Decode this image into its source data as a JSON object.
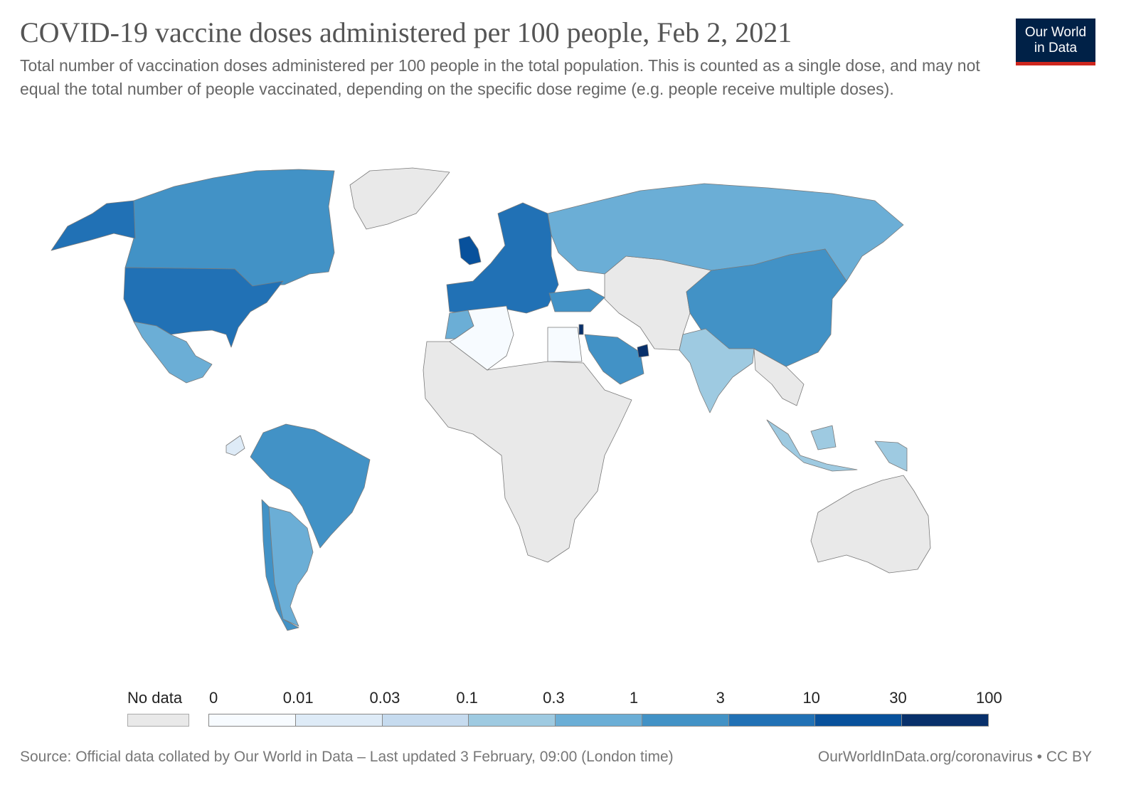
{
  "header": {
    "title": "COVID-19 vaccine doses administered per 100 people, Feb 2, 2021",
    "subtitle": "Total number of vaccination doses administered per 100 people in the total population. This is counted as a single dose, and may not equal the total number of people vaccinated, depending on the specific dose regime (e.g. people receive multiple doses)."
  },
  "logo": {
    "line1": "Our World",
    "line2": "in Data"
  },
  "legend": {
    "no_data_label": "No data",
    "no_data_color": "#e9e9e9",
    "ticks": [
      "0",
      "0.01",
      "0.03",
      "0.1",
      "0.3",
      "1",
      "3",
      "10",
      "30",
      "100"
    ],
    "bin_colors": [
      "#f7fbff",
      "#deebf7",
      "#c6dbef",
      "#9ecae1",
      "#6baed6",
      "#4292c6",
      "#2171b5",
      "#08519c",
      "#08306b"
    ]
  },
  "footer": {
    "source": "Source: Official data collated by Our World in Data – Last updated 3 February, 09:00 (London time)",
    "credit": "OurWorldInData.org/coronavirus • CC BY"
  },
  "map_regions": [
    {
      "name": "Canada",
      "bin": 5
    },
    {
      "name": "United States",
      "bin": 6
    },
    {
      "name": "Alaska",
      "bin": 6
    },
    {
      "name": "Mexico",
      "bin": 4
    },
    {
      "name": "Greenland",
      "bin": -1
    },
    {
      "name": "Brazil",
      "bin": 5
    },
    {
      "name": "Argentina",
      "bin": 4
    },
    {
      "name": "Chile",
      "bin": 5
    },
    {
      "name": "Ecuador",
      "bin": 1
    },
    {
      "name": "Russia",
      "bin": 4
    },
    {
      "name": "China",
      "bin": 5
    },
    {
      "name": "India",
      "bin": 3
    },
    {
      "name": "Saudi Arabia",
      "bin": 5
    },
    {
      "name": "United Arab Emirates",
      "bin": 8
    },
    {
      "name": "Israel",
      "bin": 8
    },
    {
      "name": "United Kingdom",
      "bin": 7
    },
    {
      "name": "Algeria",
      "bin": 0
    },
    {
      "name": "Egypt",
      "bin": 0
    },
    {
      "name": "Morocco",
      "bin": 4
    },
    {
      "name": "Turkey",
      "bin": 5
    },
    {
      "name": "Indonesia",
      "bin": 3
    },
    {
      "name": "Australia",
      "bin": -1
    },
    {
      "name": "Africa",
      "bin": -1
    }
  ]
}
